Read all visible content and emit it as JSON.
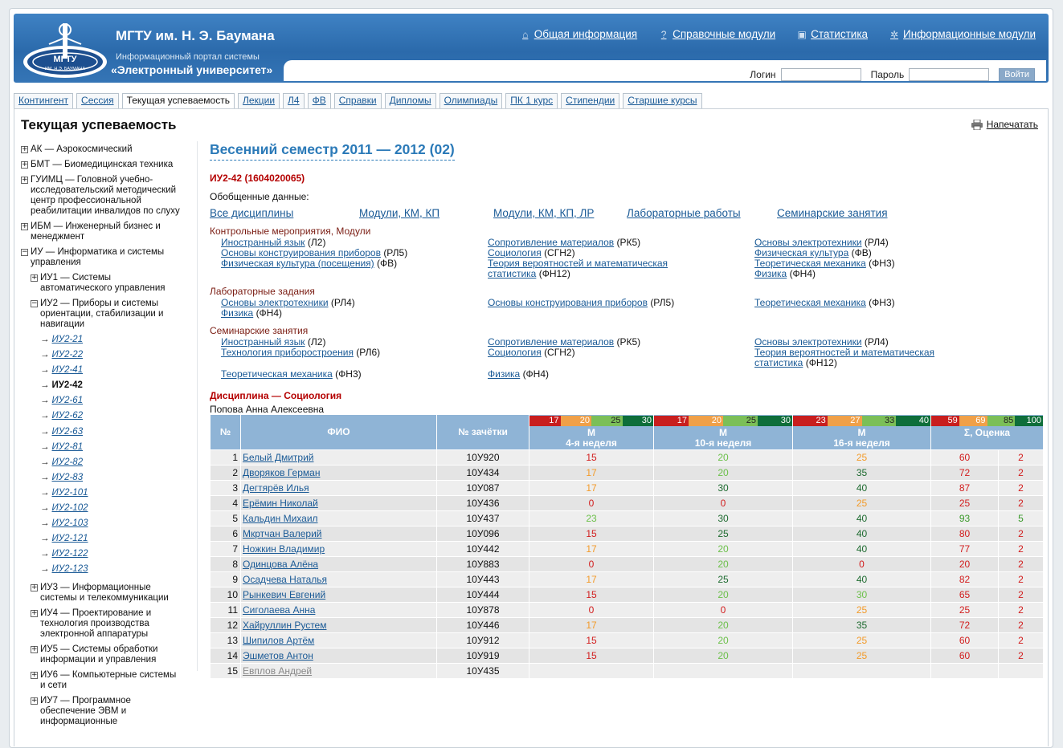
{
  "header": {
    "logo_text": "МГТУ",
    "logo_subtext": "ИМ. Н.Э. БАУМАНА",
    "university_name": "МГТУ им. Н. Э. Баумана",
    "portal_subtitle": "Информационный портал системы",
    "portal_name": "«Электронный университет»",
    "nav": [
      {
        "label": "Общая информация",
        "icon": "home-icon"
      },
      {
        "label": "Справочные модули",
        "icon": "help-icon"
      },
      {
        "label": "Статистика",
        "icon": "stats-icon"
      },
      {
        "label": "Информационные модули",
        "icon": "gear-icon"
      }
    ],
    "login_label": "Логин",
    "password_label": "Пароль",
    "login_button": "Войти"
  },
  "tabs": [
    "Контингент",
    "Сессия",
    "Текущая успеваемость",
    "Лекции",
    "Л4",
    "ФВ",
    "Справки",
    "Дипломы",
    "Олимпиады",
    "ПК 1 курс",
    "Стипендии",
    "Старшие курсы"
  ],
  "active_tab": "Текущая успеваемость",
  "page_title": "Текущая успеваемость",
  "print_label": "Напечатать",
  "sidebar": {
    "departments_top": [
      {
        "pm": "+",
        "label": "АК — Аэрокосмический"
      },
      {
        "pm": "+",
        "label": "БМТ — Биомедицинская техника"
      },
      {
        "pm": "+",
        "label": "ГУИМЦ — Головной учебно-исследовательский методический центр профессиональной реабилитации инвалидов по слуху"
      },
      {
        "pm": "+",
        "label": "ИБМ — Инженерный бизнес и менеджмент"
      },
      {
        "pm": "−",
        "label": "ИУ — Информатика и системы управления"
      }
    ],
    "iu_sub_before": [
      {
        "pm": "+",
        "label": "ИУ1 — Системы автоматического управления"
      },
      {
        "pm": "−",
        "label": "ИУ2 — Приборы и системы ориентации, стабилизации и навигации"
      }
    ],
    "groups": [
      "ИУ2-21",
      "ИУ2-22",
      "ИУ2-41",
      "ИУ2-42",
      "ИУ2-61",
      "ИУ2-62",
      "ИУ2-63",
      "ИУ2-81",
      "ИУ2-82",
      "ИУ2-83",
      "ИУ2-101",
      "ИУ2-102",
      "ИУ2-103",
      "ИУ2-121",
      "ИУ2-122",
      "ИУ2-123"
    ],
    "current_group": "ИУ2-42",
    "iu_sub_after": [
      {
        "pm": "+",
        "label": "ИУ3 — Информационные системы и телекоммуникации"
      },
      {
        "pm": "+",
        "label": "ИУ4 — Проектирование и технология производства электронной аппаратуры"
      },
      {
        "pm": "+",
        "label": "ИУ5 — Системы обработки информации и управления"
      },
      {
        "pm": "+",
        "label": "ИУ6 — Компьютерные системы и сети"
      },
      {
        "pm": "+",
        "label": "ИУ7 — Программное обеспечение ЭВМ и информационные"
      }
    ]
  },
  "main": {
    "semester": "Весенний семестр 2011 — 2012 (02)",
    "group_code": "ИУ2-42   (1604020065)",
    "summary_label": "Обобщенные данные:",
    "summary_links": [
      "Все дисциплины",
      "Модули, КМ, КП",
      "Модули, КМ, КП, ЛР",
      "Лабораторные работы",
      "Семинарские занятия"
    ],
    "sections": {
      "control": {
        "label": "Контрольные мероприятия, Модули",
        "items": [
          {
            "name": "Иностранный язык",
            "code": "(Л2)"
          },
          {
            "name": "Основы конструирования приборов",
            "code": "(РЛ5)"
          },
          {
            "name": "Физическая культура (посещения)",
            "code": "(ФВ)"
          },
          {
            "name": "Сопротивление материалов",
            "code": "(РК5)"
          },
          {
            "name": "Социология",
            "code": "(СГН2)"
          },
          {
            "name": "Теория вероятностей и математическая статистика",
            "code": "(ФН12)"
          },
          {
            "name": "Основы электротехники",
            "code": "(РЛ4)"
          },
          {
            "name": "Физическая культура",
            "code": "(ФВ)"
          },
          {
            "name": "Теоретическая механика",
            "code": "(ФН3)"
          },
          {
            "name": "Физика",
            "code": "(ФН4)"
          }
        ]
      },
      "lab": {
        "label": "Лабораторные задания",
        "items": [
          {
            "name": "Основы электротехники",
            "code": "(РЛ4)"
          },
          {
            "name": "Физика",
            "code": "(ФН4)"
          },
          {
            "name": "Основы конструирования приборов",
            "code": "(РЛ5)"
          },
          {
            "name": "Теоретическая механика",
            "code": "(ФН3)"
          }
        ]
      },
      "seminar": {
        "label": "Семинарские занятия",
        "items": [
          {
            "name": "Иностранный язык",
            "code": "(Л2)"
          },
          {
            "name": "Технология приборостроения",
            "code": "(РЛ6)"
          },
          {
            "name": "Теоретическая механика",
            "code": "(ФН3)"
          },
          {
            "name": "Сопротивление материалов",
            "code": "(РК5)"
          },
          {
            "name": "Социология",
            "code": "(СГН2)"
          },
          {
            "name": "Физика",
            "code": "(ФН4)"
          },
          {
            "name": "Основы электротехники",
            "code": "(РЛ4)"
          },
          {
            "name": "Теория вероятностей и математическая статистика",
            "code": "(ФН12)"
          }
        ]
      }
    },
    "discipline_label": "Дисциплина — Социология",
    "teacher": "Попова Анна Алексеевна",
    "table": {
      "headers": {
        "num": "№",
        "fio": "ФИО",
        "record": "№ зачётки"
      },
      "weeks": [
        {
          "scale": [
            "17",
            "20",
            "25",
            "30"
          ],
          "title": "М",
          "subtitle": "4-я неделя"
        },
        {
          "scale": [
            "17",
            "20",
            "25",
            "30"
          ],
          "title": "М",
          "subtitle": "10-я неделя"
        },
        {
          "scale": [
            "23",
            "27",
            "33",
            "40"
          ],
          "title": "М",
          "subtitle": "16-я неделя"
        },
        {
          "scale": [
            "59",
            "69",
            "85",
            "100"
          ],
          "title": "Σ, Оценка",
          "subtitle": ""
        }
      ],
      "rows": [
        {
          "n": "1",
          "fio": "Белый Дмитрий",
          "rec": "10У920",
          "w4": "15",
          "w4c": "red",
          "w10": "20",
          "w10c": "lgr",
          "w16": "25",
          "w16c": "ora",
          "sum": "60",
          "sumc": "red",
          "grade": "2",
          "gc": "red"
        },
        {
          "n": "2",
          "fio": "Дворяков Герман",
          "rec": "10У434",
          "w4": "17",
          "w4c": "ora",
          "w10": "20",
          "w10c": "lgr",
          "w16": "35",
          "w16c": "dk",
          "sum": "72",
          "sumc": "red",
          "grade": "2",
          "gc": "red"
        },
        {
          "n": "3",
          "fio": "Дегтярёв Илья",
          "rec": "10У087",
          "w4": "17",
          "w4c": "ora",
          "w10": "30",
          "w10c": "dk",
          "w16": "40",
          "w16c": "dk",
          "sum": "87",
          "sumc": "red",
          "grade": "2",
          "gc": "red"
        },
        {
          "n": "4",
          "fio": "Ерёмин Николай",
          "rec": "10У436",
          "w4": "0",
          "w4c": "red",
          "w10": "0",
          "w10c": "red",
          "w16": "25",
          "w16c": "ora",
          "sum": "25",
          "sumc": "red",
          "grade": "2",
          "gc": "red"
        },
        {
          "n": "5",
          "fio": "Кальдин Михаил",
          "rec": "10У437",
          "w4": "23",
          "w4c": "lgr",
          "w10": "30",
          "w10c": "dk",
          "w16": "40",
          "w16c": "dk",
          "sum": "93",
          "sumc": "grn",
          "grade": "5",
          "gc": "grn"
        },
        {
          "n": "6",
          "fio": "Мкртчан Валерий",
          "rec": "10У096",
          "w4": "15",
          "w4c": "red",
          "w10": "25",
          "w10c": "dk",
          "w16": "40",
          "w16c": "dk",
          "sum": "80",
          "sumc": "red",
          "grade": "2",
          "gc": "red"
        },
        {
          "n": "7",
          "fio": "Ножкин Владимир",
          "rec": "10У442",
          "w4": "17",
          "w4c": "ora",
          "w10": "20",
          "w10c": "lgr",
          "w16": "40",
          "w16c": "dk",
          "sum": "77",
          "sumc": "red",
          "grade": "2",
          "gc": "red"
        },
        {
          "n": "8",
          "fio": "Одинцова Алёна",
          "rec": "10У883",
          "w4": "0",
          "w4c": "red",
          "w10": "20",
          "w10c": "lgr",
          "w16": "0",
          "w16c": "red",
          "sum": "20",
          "sumc": "red",
          "grade": "2",
          "gc": "red"
        },
        {
          "n": "9",
          "fio": "Осадчева Наталья",
          "rec": "10У443",
          "w4": "17",
          "w4c": "ora",
          "w10": "25",
          "w10c": "dk",
          "w16": "40",
          "w16c": "dk",
          "sum": "82",
          "sumc": "red",
          "grade": "2",
          "gc": "red"
        },
        {
          "n": "10",
          "fio": "Рынкевич Евгений",
          "rec": "10У444",
          "w4": "15",
          "w4c": "red",
          "w10": "20",
          "w10c": "lgr",
          "w16": "30",
          "w16c": "lgr",
          "sum": "65",
          "sumc": "red",
          "grade": "2",
          "gc": "red"
        },
        {
          "n": "11",
          "fio": "Сиголаева Анна",
          "rec": "10У878",
          "w4": "0",
          "w4c": "red",
          "w10": "0",
          "w10c": "red",
          "w16": "25",
          "w16c": "ora",
          "sum": "25",
          "sumc": "red",
          "grade": "2",
          "gc": "red"
        },
        {
          "n": "12",
          "fio": "Хайруллин Рустем",
          "rec": "10У446",
          "w4": "17",
          "w4c": "ora",
          "w10": "20",
          "w10c": "lgr",
          "w16": "35",
          "w16c": "dk",
          "sum": "72",
          "sumc": "red",
          "grade": "2",
          "gc": "red"
        },
        {
          "n": "13",
          "fio": "Шипилов Артём",
          "rec": "10У912",
          "w4": "15",
          "w4c": "red",
          "w10": "20",
          "w10c": "lgr",
          "w16": "25",
          "w16c": "ora",
          "sum": "60",
          "sumc": "red",
          "grade": "2",
          "gc": "red"
        },
        {
          "n": "14",
          "fio": "Эшметов Антон",
          "rec": "10У919",
          "w4": "15",
          "w4c": "red",
          "w10": "20",
          "w10c": "lgr",
          "w16": "25",
          "w16c": "ora",
          "sum": "60",
          "sumc": "red",
          "grade": "2",
          "gc": "red"
        },
        {
          "n": "15",
          "fio": "Евплов Андрей",
          "rec": "10У435",
          "w4": "",
          "w4c": "",
          "w10": "",
          "w10c": "",
          "w16": "",
          "w16c": "",
          "sum": "",
          "sumc": "",
          "grade": "",
          "gc": ""
        }
      ]
    }
  }
}
